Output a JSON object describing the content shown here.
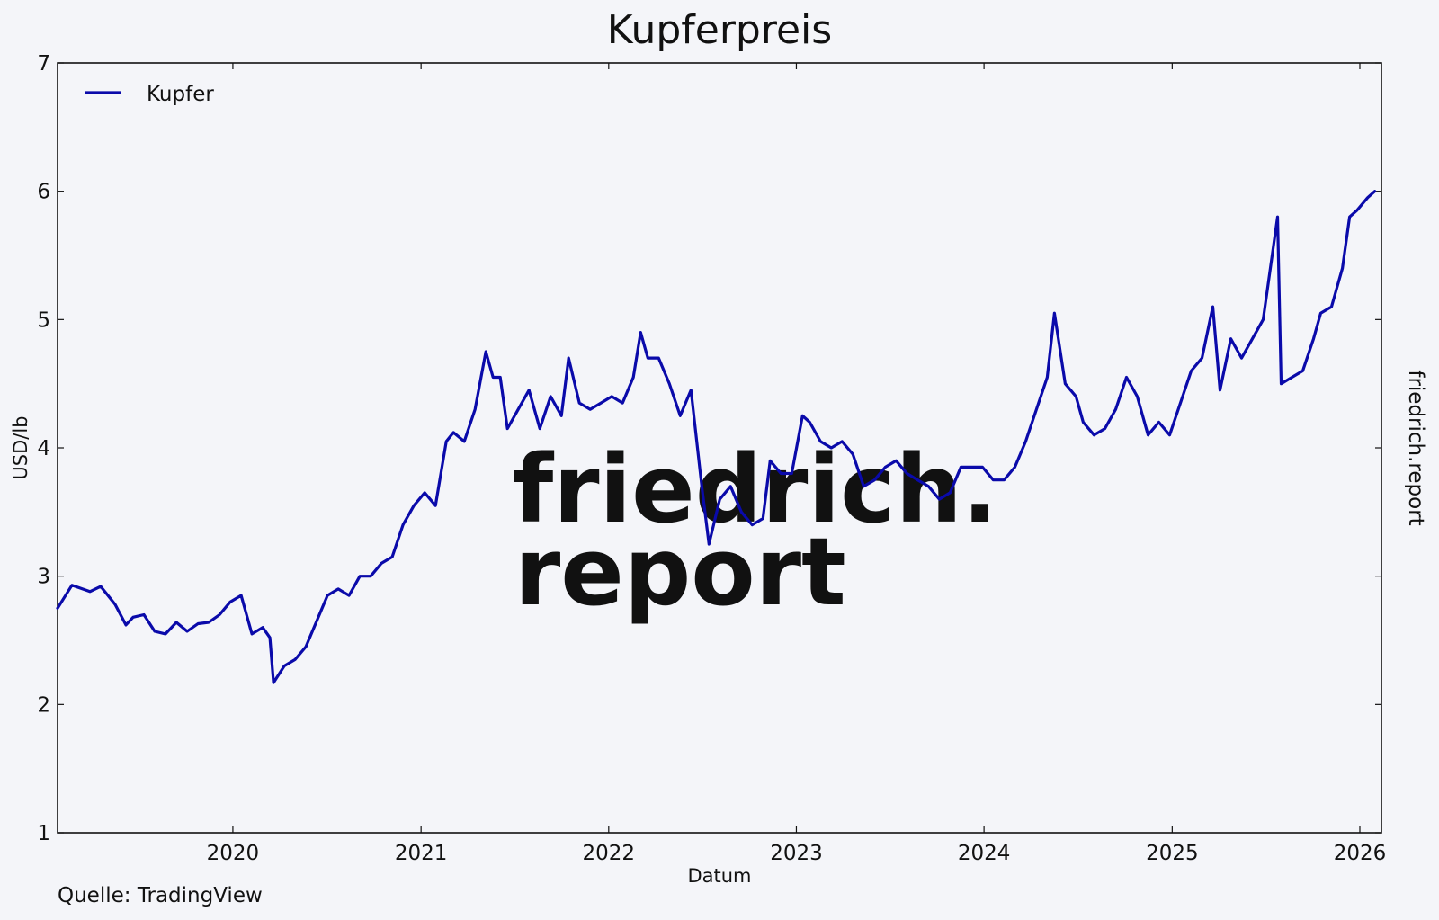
{
  "page": {
    "background": "#f4f5f9",
    "source": "Quelle: TradingView",
    "side_label": "friedrich.report",
    "watermark": [
      "friedrich.",
      "report"
    ],
    "watermark_color": "#dcdcef"
  },
  "chart_data": {
    "type": "line",
    "title": "Kupferpreis",
    "xlabel": "Datum",
    "ylabel": "USD/lb",
    "xlim": [
      "2019-01-25",
      "2026-02-12"
    ],
    "ylim": [
      1,
      7
    ],
    "x_ticks": [
      "2020",
      "2021",
      "2022",
      "2023",
      "2024",
      "2025",
      "2026"
    ],
    "y_ticks": [
      "1",
      "2",
      "3",
      "4",
      "5",
      "6",
      "7"
    ],
    "grid": false,
    "legend": "top-left",
    "series": [
      {
        "name": "Kupfer",
        "color": "#0a0aaa",
        "points": [
          [
            "2019-01-25",
            2.75
          ],
          [
            "2019-02-22",
            2.93
          ],
          [
            "2019-03-29",
            2.88
          ],
          [
            "2019-04-19",
            2.92
          ],
          [
            "2019-05-17",
            2.78
          ],
          [
            "2019-06-07",
            2.62
          ],
          [
            "2019-06-21",
            2.68
          ],
          [
            "2019-07-12",
            2.7
          ],
          [
            "2019-08-02",
            2.57
          ],
          [
            "2019-08-23",
            2.55
          ],
          [
            "2019-09-13",
            2.64
          ],
          [
            "2019-10-04",
            2.57
          ],
          [
            "2019-10-25",
            2.63
          ],
          [
            "2019-11-15",
            2.64
          ],
          [
            "2019-12-06",
            2.7
          ],
          [
            "2019-12-27",
            2.8
          ],
          [
            "2020-01-17",
            2.85
          ],
          [
            "2020-02-07",
            2.55
          ],
          [
            "2020-02-28",
            2.6
          ],
          [
            "2020-03-13",
            2.52
          ],
          [
            "2020-03-20",
            2.17
          ],
          [
            "2020-04-10",
            2.3
          ],
          [
            "2020-05-01",
            2.35
          ],
          [
            "2020-05-22",
            2.45
          ],
          [
            "2020-06-12",
            2.65
          ],
          [
            "2020-07-03",
            2.85
          ],
          [
            "2020-07-24",
            2.9
          ],
          [
            "2020-08-14",
            2.85
          ],
          [
            "2020-09-04",
            3.0
          ],
          [
            "2020-09-25",
            3.0
          ],
          [
            "2020-10-16",
            3.1
          ],
          [
            "2020-11-06",
            3.15
          ],
          [
            "2020-11-27",
            3.4
          ],
          [
            "2020-12-18",
            3.55
          ],
          [
            "2021-01-08",
            3.65
          ],
          [
            "2021-01-29",
            3.55
          ],
          [
            "2021-02-19",
            4.05
          ],
          [
            "2021-03-05",
            4.12
          ],
          [
            "2021-03-26",
            4.05
          ],
          [
            "2021-04-16",
            4.3
          ],
          [
            "2021-05-07",
            4.75
          ],
          [
            "2021-05-21",
            4.55
          ],
          [
            "2021-06-04",
            4.55
          ],
          [
            "2021-06-18",
            4.15
          ],
          [
            "2021-07-09",
            4.3
          ],
          [
            "2021-07-30",
            4.45
          ],
          [
            "2021-08-20",
            4.15
          ],
          [
            "2021-09-10",
            4.4
          ],
          [
            "2021-10-01",
            4.25
          ],
          [
            "2021-10-15",
            4.7
          ],
          [
            "2021-11-05",
            4.35
          ],
          [
            "2021-11-26",
            4.3
          ],
          [
            "2021-12-17",
            4.35
          ],
          [
            "2022-01-07",
            4.4
          ],
          [
            "2022-01-28",
            4.35
          ],
          [
            "2022-02-18",
            4.55
          ],
          [
            "2022-03-04",
            4.9
          ],
          [
            "2022-03-18",
            4.7
          ],
          [
            "2022-04-08",
            4.7
          ],
          [
            "2022-04-29",
            4.5
          ],
          [
            "2022-05-20",
            4.25
          ],
          [
            "2022-06-10",
            4.45
          ],
          [
            "2022-07-01",
            3.7
          ],
          [
            "2022-07-15",
            3.25
          ],
          [
            "2022-08-05",
            3.6
          ],
          [
            "2022-08-26",
            3.7
          ],
          [
            "2022-09-16",
            3.5
          ],
          [
            "2022-10-07",
            3.4
          ],
          [
            "2022-10-28",
            3.45
          ],
          [
            "2022-11-11",
            3.9
          ],
          [
            "2022-12-02",
            3.8
          ],
          [
            "2022-12-23",
            3.8
          ],
          [
            "2023-01-13",
            4.25
          ],
          [
            "2023-01-27",
            4.2
          ],
          [
            "2023-02-17",
            4.05
          ],
          [
            "2023-03-10",
            4.0
          ],
          [
            "2023-03-31",
            4.05
          ],
          [
            "2023-04-21",
            3.95
          ],
          [
            "2023-05-12",
            3.7
          ],
          [
            "2023-06-02",
            3.75
          ],
          [
            "2023-06-23",
            3.85
          ],
          [
            "2023-07-14",
            3.9
          ],
          [
            "2023-08-04",
            3.8
          ],
          [
            "2023-08-25",
            3.75
          ],
          [
            "2023-09-15",
            3.7
          ],
          [
            "2023-10-06",
            3.6
          ],
          [
            "2023-10-27",
            3.65
          ],
          [
            "2023-11-17",
            3.85
          ],
          [
            "2023-12-08",
            3.85
          ],
          [
            "2023-12-29",
            3.85
          ],
          [
            "2024-01-19",
            3.75
          ],
          [
            "2024-02-09",
            3.75
          ],
          [
            "2024-03-01",
            3.85
          ],
          [
            "2024-03-22",
            4.05
          ],
          [
            "2024-04-12",
            4.3
          ],
          [
            "2024-05-03",
            4.55
          ],
          [
            "2024-05-17",
            5.05
          ],
          [
            "2024-06-07",
            4.5
          ],
          [
            "2024-06-28",
            4.4
          ],
          [
            "2024-07-12",
            4.2
          ],
          [
            "2024-08-02",
            4.1
          ],
          [
            "2024-08-23",
            4.15
          ],
          [
            "2024-09-13",
            4.3
          ],
          [
            "2024-10-04",
            4.55
          ],
          [
            "2024-10-25",
            4.4
          ],
          [
            "2024-11-15",
            4.1
          ],
          [
            "2024-12-06",
            4.2
          ],
          [
            "2024-12-27",
            4.1
          ],
          [
            "2025-01-17",
            4.35
          ],
          [
            "2025-02-07",
            4.6
          ],
          [
            "2025-02-28",
            4.7
          ],
          [
            "2025-03-21",
            5.1
          ],
          [
            "2025-04-04",
            4.45
          ],
          [
            "2025-04-25",
            4.85
          ],
          [
            "2025-05-16",
            4.7
          ],
          [
            "2025-06-06",
            4.85
          ],
          [
            "2025-06-27",
            5.0
          ],
          [
            "2025-07-18",
            5.6
          ],
          [
            "2025-07-25",
            5.8
          ],
          [
            "2025-08-01",
            4.5
          ],
          [
            "2025-08-22",
            4.55
          ],
          [
            "2025-09-12",
            4.6
          ],
          [
            "2025-10-03",
            4.85
          ],
          [
            "2025-10-17",
            5.05
          ],
          [
            "2025-11-07",
            5.1
          ],
          [
            "2025-11-28",
            5.4
          ],
          [
            "2025-12-12",
            5.8
          ],
          [
            "2025-12-26",
            5.85
          ],
          [
            "2026-01-16",
            5.95
          ],
          [
            "2026-01-30",
            6.0
          ]
        ]
      }
    ]
  }
}
